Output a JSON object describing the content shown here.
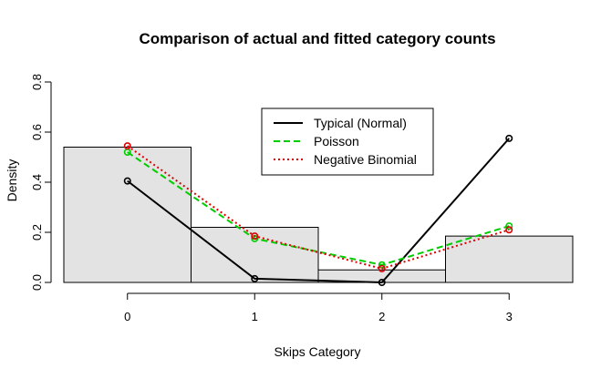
{
  "chart_data": {
    "type": "bar",
    "title": "Comparison of actual and fitted category counts",
    "xlabel": "Skips Category",
    "ylabel": "Density",
    "categories": [
      "0",
      "1",
      "2",
      "3"
    ],
    "x_ticks": [
      "0",
      "1",
      "2",
      "3"
    ],
    "y_ticks": [
      "0.0",
      "0.2",
      "0.4",
      "0.6",
      "0.8"
    ],
    "ylim": [
      0,
      0.8
    ],
    "xlim": [
      -0.5,
      3.5
    ],
    "grid": false,
    "legend_position": "top-right",
    "bars": {
      "values": [
        0.54,
        0.22,
        0.05,
        0.185
      ],
      "fill": "#e3e3e3",
      "stroke": "#000000"
    },
    "series": [
      {
        "name": "Typical (Normal)",
        "values": [
          0.405,
          0.015,
          0.0,
          0.575
        ],
        "color": "#000000",
        "dash": "solid"
      },
      {
        "name": "Poisson",
        "values": [
          0.52,
          0.175,
          0.07,
          0.225
        ],
        "color": "#00cd00",
        "dash": "dashed"
      },
      {
        "name": "Negative Binomial",
        "values": [
          0.545,
          0.185,
          0.055,
          0.21
        ],
        "color": "#dd0000",
        "dash": "dotted"
      }
    ]
  }
}
